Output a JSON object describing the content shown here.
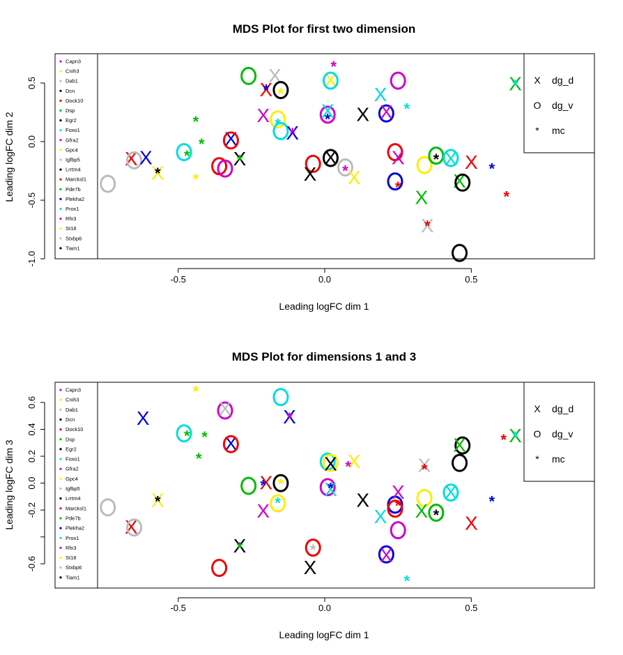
{
  "colors": {
    "Capn3": "#cc00cc",
    "Cnih3": "#ffee00",
    "Dab1": "#bbbbbb",
    "Dcn": "#000000",
    "Dock10": "#ee0000",
    "Dsp": "#00bb00",
    "Egr2": "#000000",
    "Foxo1": "#00dddd",
    "Gfra2": "#cc00cc",
    "Gpc4": "#ffee00",
    "Igfbp5": "#bbbbbb",
    "Lrrtm4": "#000000",
    "Marcksl1": "#ee0000",
    "Pde7b": "#00bb00",
    "Plekha2": "#0000dd",
    "Prox1": "#00dddd",
    "Rfx3": "#cc00cc",
    "St18": "#ffee00",
    "Stxbp6": "#bbbbbb",
    "Tiam1": "#000000"
  },
  "chart_data": [
    {
      "type": "scatter",
      "title": "MDS Plot for first two dimension",
      "xlabel": "Leading logFC dim 1",
      "ylabel": "Leading logFC dim 2",
      "xlim": [
        -0.92,
        0.92
      ],
      "ylim": [
        -1.0,
        0.75
      ],
      "xticks": [
        -0.5,
        0.0,
        0.5
      ],
      "xtick_labels": [
        "-0.5",
        "0.0",
        "0.5"
      ],
      "yticks": [
        -1.0,
        -0.5,
        0.0,
        0.5
      ],
      "ytick_labels": [
        "-1.0",
        "-0.5",
        "0.0",
        "0.5"
      ],
      "legend_genes": [
        "Capn3",
        "Cnih3",
        "Dab1",
        "Dcn",
        "Dock10",
        "Dsp",
        "Egr2",
        "Foxo1",
        "Gfra2",
        "Gpc4",
        "Igfbp5",
        "Lrrtm4",
        "Marcksl1",
        "Pde7b",
        "Plekha2",
        "Prox1",
        "Rfx3",
        "St18",
        "Stxbp6",
        "Tiam1"
      ],
      "legend_groups": [
        {
          "symbol": "X",
          "label": "dg_d"
        },
        {
          "symbol": "O",
          "label": "dg_v"
        },
        {
          "symbol": "*",
          "label": "mc"
        }
      ],
      "legend_position": "top-right",
      "points": [
        {
          "x": -0.17,
          "y": 0.56,
          "s": "X",
          "g": "Dab1"
        },
        {
          "x": -0.26,
          "y": 0.56,
          "s": "O",
          "g": "Dsp"
        },
        {
          "x": -0.2,
          "y": 0.44,
          "s": "X",
          "g": "Dock10"
        },
        {
          "x": -0.15,
          "y": 0.44,
          "s": "O",
          "g": "Dcn"
        },
        {
          "x": -0.2,
          "y": 0.46,
          "s": "*",
          "g": "Plekha2"
        },
        {
          "x": -0.15,
          "y": 0.43,
          "s": "*",
          "g": "Gpc4"
        },
        {
          "x": 0.03,
          "y": 0.66,
          "s": "*",
          "g": "Capn3"
        },
        {
          "x": 0.02,
          "y": 0.52,
          "s": "X",
          "g": "Gpc4"
        },
        {
          "x": 0.02,
          "y": 0.52,
          "s": "O",
          "g": "Foxo1"
        },
        {
          "x": 0.25,
          "y": 0.52,
          "s": "O",
          "g": "Capn3"
        },
        {
          "x": 0.19,
          "y": 0.4,
          "s": "X",
          "g": "Foxo1"
        },
        {
          "x": 0.86,
          "y": 0.63,
          "s": "O",
          "g": "Plekha2"
        },
        {
          "x": 0.65,
          "y": 0.49,
          "s": "X",
          "g": "Dsp"
        },
        {
          "x": 0.65,
          "y": 0.5,
          "s": "*",
          "g": "Foxo1"
        },
        {
          "x": 0.28,
          "y": 0.3,
          "s": "*",
          "g": "Foxo1"
        },
        {
          "x": -0.21,
          "y": 0.22,
          "s": "X",
          "g": "Gfra2"
        },
        {
          "x": -0.16,
          "y": 0.19,
          "s": "O",
          "g": "Cnih3"
        },
        {
          "x": -0.15,
          "y": 0.09,
          "s": "O",
          "g": "Foxo1"
        },
        {
          "x": -0.11,
          "y": 0.07,
          "s": "X",
          "g": "Plekha2"
        },
        {
          "x": -0.11,
          "y": 0.09,
          "s": "*",
          "g": "Gfra2"
        },
        {
          "x": -0.16,
          "y": 0.17,
          "s": "*",
          "g": "Foxo1"
        },
        {
          "x": -0.44,
          "y": 0.19,
          "s": "*",
          "g": "Dsp"
        },
        {
          "x": -0.42,
          "y": 0.0,
          "s": "*",
          "g": "Dsp"
        },
        {
          "x": 0.01,
          "y": 0.23,
          "s": "O",
          "g": "Gfra2"
        },
        {
          "x": 0.01,
          "y": 0.26,
          "s": "X",
          "g": "Foxo1"
        },
        {
          "x": 0.01,
          "y": 0.21,
          "s": "*",
          "g": "Plekha2"
        },
        {
          "x": 0.13,
          "y": 0.23,
          "s": "X",
          "g": "Dcn"
        },
        {
          "x": 0.21,
          "y": 0.24,
          "s": "O",
          "g": "Plekha2"
        },
        {
          "x": 0.21,
          "y": 0.25,
          "s": "X",
          "g": "Gfra2"
        },
        {
          "x": -0.32,
          "y": 0.02,
          "s": "X",
          "g": "Plekha2"
        },
        {
          "x": -0.32,
          "y": 0.01,
          "s": "O",
          "g": "Dock10"
        },
        {
          "x": -0.29,
          "y": -0.15,
          "s": "X",
          "g": "Dcn"
        },
        {
          "x": -0.29,
          "y": -0.14,
          "s": "*",
          "g": "Dsp"
        },
        {
          "x": -0.36,
          "y": -0.21,
          "s": "O",
          "g": "Dock10"
        },
        {
          "x": -0.34,
          "y": -0.23,
          "s": "O",
          "g": "Gfra2"
        },
        {
          "x": -0.48,
          "y": -0.09,
          "s": "O",
          "g": "Foxo1"
        },
        {
          "x": -0.47,
          "y": -0.1,
          "s": "*",
          "g": "Dsp"
        },
        {
          "x": -0.66,
          "y": -0.15,
          "s": "X",
          "g": "Dock10"
        },
        {
          "x": -0.65,
          "y": -0.16,
          "s": "O",
          "g": "Dab1"
        },
        {
          "x": -0.61,
          "y": -0.14,
          "s": "X",
          "g": "Plekha2"
        },
        {
          "x": -0.57,
          "y": -0.27,
          "s": "X",
          "g": "Gpc4"
        },
        {
          "x": -0.57,
          "y": -0.25,
          "s": "*",
          "g": "Dcn"
        },
        {
          "x": -0.44,
          "y": -0.3,
          "s": "*",
          "g": "Gpc4"
        },
        {
          "x": -0.74,
          "y": -0.36,
          "s": "O",
          "g": "Dab1"
        },
        {
          "x": -0.85,
          "y": -0.22,
          "s": "*",
          "g": "Dcn"
        },
        {
          "x": -0.04,
          "y": -0.19,
          "s": "O",
          "g": "Dock10"
        },
        {
          "x": 0.02,
          "y": -0.14,
          "s": "X",
          "g": "Dcn"
        },
        {
          "x": 0.02,
          "y": -0.14,
          "s": "O",
          "g": "Dcn"
        },
        {
          "x": -0.05,
          "y": -0.28,
          "s": "X",
          "g": "Dcn"
        },
        {
          "x": 0.07,
          "y": -0.22,
          "s": "O",
          "g": "Dab1"
        },
        {
          "x": 0.07,
          "y": -0.23,
          "s": "*",
          "g": "Gfra2"
        },
        {
          "x": 0.1,
          "y": -0.31,
          "s": "X",
          "g": "Gpc4"
        },
        {
          "x": 0.24,
          "y": -0.09,
          "s": "O",
          "g": "Dock10"
        },
        {
          "x": 0.25,
          "y": -0.14,
          "s": "X",
          "g": "Gfra2"
        },
        {
          "x": 0.34,
          "y": -0.2,
          "s": "O",
          "g": "Gpc4"
        },
        {
          "x": 0.38,
          "y": -0.12,
          "s": "O",
          "g": "Dsp"
        },
        {
          "x": 0.38,
          "y": -0.13,
          "s": "*",
          "g": "Dcn"
        },
        {
          "x": 0.43,
          "y": -0.15,
          "s": "X",
          "g": "Foxo1"
        },
        {
          "x": 0.43,
          "y": -0.14,
          "s": "O",
          "g": "Foxo1"
        },
        {
          "x": 0.5,
          "y": -0.18,
          "s": "X",
          "g": "Dock10"
        },
        {
          "x": 0.57,
          "y": -0.21,
          "s": "*",
          "g": "Plekha2"
        },
        {
          "x": 0.24,
          "y": -0.34,
          "s": "O",
          "g": "Plekha2"
        },
        {
          "x": 0.25,
          "y": -0.37,
          "s": "*",
          "g": "Dock10"
        },
        {
          "x": 0.46,
          "y": -0.34,
          "s": "X",
          "g": "Dsp"
        },
        {
          "x": 0.47,
          "y": -0.35,
          "s": "O",
          "g": "Dcn"
        },
        {
          "x": 0.33,
          "y": -0.48,
          "s": "X",
          "g": "Dsp"
        },
        {
          "x": 0.62,
          "y": -0.45,
          "s": "*",
          "g": "Dock10"
        },
        {
          "x": 0.35,
          "y": -0.72,
          "s": "X",
          "g": "Dab1"
        },
        {
          "x": 0.35,
          "y": -0.7,
          "s": "*",
          "g": "Dock10"
        },
        {
          "x": 0.46,
          "y": -0.95,
          "s": "O",
          "g": "Dcn"
        }
      ]
    },
    {
      "type": "scatter",
      "title": "MDS Plot for dimensions 1 and 3",
      "xlabel": "Leading logFC dim 1",
      "ylabel": "Leading logFC dim 3",
      "xlim": [
        -0.92,
        0.92
      ],
      "ylim": [
        -0.78,
        0.75
      ],
      "xticks": [
        -0.5,
        0.0,
        0.5
      ],
      "xtick_labels": [
        "-0.5",
        "0.0",
        "0.5"
      ],
      "yticks": [
        -0.6,
        -0.4,
        -0.2,
        0.0,
        0.2,
        0.4,
        0.6
      ],
      "ytick_labels": [
        "-0.6",
        "",
        "-0.2",
        "0.0",
        "0.2",
        "0.4",
        "0.6"
      ],
      "legend_genes": [
        "Capn3",
        "Cnih3",
        "Dab1",
        "Dcn",
        "Dock10",
        "Dsp",
        "Egr2",
        "Foxo1",
        "Gfra2",
        "Gpc4",
        "Igfbp5",
        "Lrrtm4",
        "Marcksl1",
        "Pde7b",
        "Plekha2",
        "Prox1",
        "Rfx3",
        "St18",
        "Stxbp6",
        "Tiam1"
      ],
      "legend_groups": [
        {
          "symbol": "X",
          "label": "dg_d"
        },
        {
          "symbol": "O",
          "label": "dg_v"
        },
        {
          "symbol": "*",
          "label": "mc"
        }
      ],
      "legend_position": "top-right",
      "points": [
        {
          "x": -0.44,
          "y": 0.7,
          "s": "*",
          "g": "Gpc4"
        },
        {
          "x": -0.15,
          "y": 0.64,
          "s": "O",
          "g": "Foxo1"
        },
        {
          "x": -0.34,
          "y": 0.54,
          "s": "O",
          "g": "Gfra2"
        },
        {
          "x": -0.34,
          "y": 0.55,
          "s": "X",
          "g": "Dab1"
        },
        {
          "x": -0.62,
          "y": 0.48,
          "s": "X",
          "g": "Plekha2"
        },
        {
          "x": -0.12,
          "y": 0.49,
          "s": "X",
          "g": "Plekha2"
        },
        {
          "x": -0.12,
          "y": 0.5,
          "s": "*",
          "g": "Gfra2"
        },
        {
          "x": -0.48,
          "y": 0.37,
          "s": "O",
          "g": "Foxo1"
        },
        {
          "x": -0.47,
          "y": 0.37,
          "s": "*",
          "g": "Dsp"
        },
        {
          "x": -0.41,
          "y": 0.36,
          "s": "*",
          "g": "Dsp"
        },
        {
          "x": -0.32,
          "y": 0.29,
          "s": "X",
          "g": "Plekha2"
        },
        {
          "x": -0.32,
          "y": 0.29,
          "s": "O",
          "g": "Dock10"
        },
        {
          "x": -0.43,
          "y": 0.2,
          "s": "*",
          "g": "Dsp"
        },
        {
          "x": 0.01,
          "y": 0.16,
          "s": "O",
          "g": "Foxo1"
        },
        {
          "x": 0.02,
          "y": 0.15,
          "s": "O",
          "g": "Gpc4"
        },
        {
          "x": 0.02,
          "y": 0.14,
          "s": "X",
          "g": "Dcn"
        },
        {
          "x": 0.1,
          "y": 0.16,
          "s": "X",
          "g": "Gpc4"
        },
        {
          "x": 0.08,
          "y": 0.14,
          "s": "*",
          "g": "Gfra2"
        },
        {
          "x": 0.86,
          "y": 0.44,
          "s": "O",
          "g": "Plekha2"
        },
        {
          "x": 0.65,
          "y": 0.35,
          "s": "X",
          "g": "Dsp"
        },
        {
          "x": 0.65,
          "y": 0.36,
          "s": "*",
          "g": "Foxo1"
        },
        {
          "x": 0.61,
          "y": 0.34,
          "s": "*",
          "g": "Dock10"
        },
        {
          "x": 0.47,
          "y": 0.28,
          "s": "O",
          "g": "Dcn"
        },
        {
          "x": 0.46,
          "y": 0.28,
          "s": "X",
          "g": "Dsp"
        },
        {
          "x": 0.46,
          "y": 0.15,
          "s": "O",
          "g": "Dcn"
        },
        {
          "x": 0.34,
          "y": 0.13,
          "s": "X",
          "g": "Dab1"
        },
        {
          "x": 0.34,
          "y": 0.12,
          "s": "*",
          "g": "Dock10"
        },
        {
          "x": -0.26,
          "y": -0.02,
          "s": "O",
          "g": "Dsp"
        },
        {
          "x": -0.2,
          "y": 0.0,
          "s": "X",
          "g": "Dock10"
        },
        {
          "x": -0.21,
          "y": 0.0,
          "s": "*",
          "g": "Plekha2"
        },
        {
          "x": -0.15,
          "y": 0.0,
          "s": "O",
          "g": "Dcn"
        },
        {
          "x": -0.15,
          "y": 0.01,
          "s": "*",
          "g": "Gpc4"
        },
        {
          "x": 0.01,
          "y": -0.03,
          "s": "O",
          "g": "Gfra2"
        },
        {
          "x": 0.02,
          "y": -0.05,
          "s": "X",
          "g": "Foxo1"
        },
        {
          "x": 0.02,
          "y": -0.02,
          "s": "*",
          "g": "Plekha2"
        },
        {
          "x": -0.57,
          "y": -0.13,
          "s": "X",
          "g": "Gpc4"
        },
        {
          "x": -0.57,
          "y": -0.12,
          "s": "*",
          "g": "Dcn"
        },
        {
          "x": -0.74,
          "y": -0.18,
          "s": "O",
          "g": "Dab1"
        },
        {
          "x": -0.16,
          "y": -0.15,
          "s": "O",
          "g": "Cnih3"
        },
        {
          "x": -0.16,
          "y": -0.13,
          "s": "*",
          "g": "Foxo1"
        },
        {
          "x": -0.21,
          "y": -0.21,
          "s": "X",
          "g": "Gfra2"
        },
        {
          "x": 0.13,
          "y": -0.13,
          "s": "X",
          "g": "Dcn"
        },
        {
          "x": 0.24,
          "y": -0.16,
          "s": "O",
          "g": "Plekha2"
        },
        {
          "x": 0.24,
          "y": -0.19,
          "s": "O",
          "g": "Dock10"
        },
        {
          "x": 0.25,
          "y": -0.07,
          "s": "X",
          "g": "Gfra2"
        },
        {
          "x": 0.25,
          "y": -0.15,
          "s": "*",
          "g": "Dock10"
        },
        {
          "x": 0.34,
          "y": -0.11,
          "s": "O",
          "g": "Gpc4"
        },
        {
          "x": 0.43,
          "y": -0.07,
          "s": "O",
          "g": "Foxo1"
        },
        {
          "x": 0.43,
          "y": -0.07,
          "s": "X",
          "g": "Foxo1"
        },
        {
          "x": 0.33,
          "y": -0.21,
          "s": "X",
          "g": "Dsp"
        },
        {
          "x": 0.38,
          "y": -0.22,
          "s": "O",
          "g": "Dsp"
        },
        {
          "x": 0.38,
          "y": -0.22,
          "s": "*",
          "g": "Dcn"
        },
        {
          "x": 0.19,
          "y": -0.25,
          "s": "X",
          "g": "Foxo1"
        },
        {
          "x": 0.5,
          "y": -0.3,
          "s": "X",
          "g": "Dock10"
        },
        {
          "x": 0.57,
          "y": -0.12,
          "s": "*",
          "g": "Plekha2"
        },
        {
          "x": 0.25,
          "y": -0.35,
          "s": "O",
          "g": "Gfra2"
        },
        {
          "x": -0.66,
          "y": -0.33,
          "s": "X",
          "g": "Dock10"
        },
        {
          "x": -0.65,
          "y": -0.33,
          "s": "O",
          "g": "Dab1"
        },
        {
          "x": -0.85,
          "y": -0.45,
          "s": "*",
          "g": "Dcn"
        },
        {
          "x": -0.29,
          "y": -0.47,
          "s": "X",
          "g": "Dcn"
        },
        {
          "x": -0.29,
          "y": -0.46,
          "s": "*",
          "g": "Dsp"
        },
        {
          "x": -0.04,
          "y": -0.48,
          "s": "O",
          "g": "Dock10"
        },
        {
          "x": -0.04,
          "y": -0.48,
          "s": "*",
          "g": "Dab1"
        },
        {
          "x": 0.21,
          "y": -0.53,
          "s": "O",
          "g": "Plekha2"
        },
        {
          "x": 0.21,
          "y": -0.54,
          "s": "X",
          "g": "Gfra2"
        },
        {
          "x": -0.36,
          "y": -0.63,
          "s": "O",
          "g": "Dock10"
        },
        {
          "x": -0.05,
          "y": -0.63,
          "s": "X",
          "g": "Dcn"
        },
        {
          "x": 0.28,
          "y": -0.71,
          "s": "*",
          "g": "Foxo1"
        }
      ]
    }
  ]
}
